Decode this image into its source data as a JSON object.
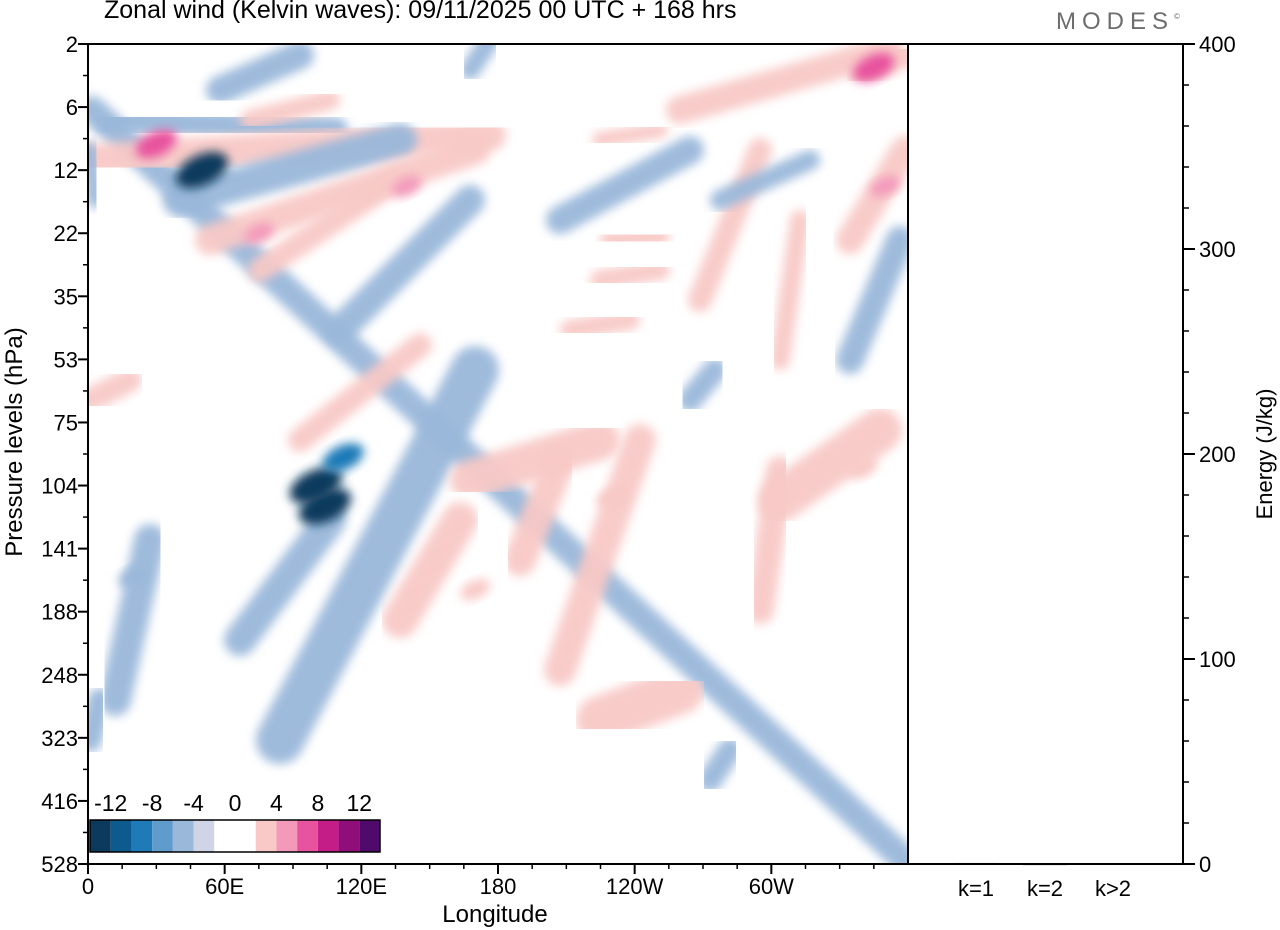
{
  "header": {
    "title": "Zonal wind (Kelvin waves):  09/11/2025  00 UTC  + 168 hrs",
    "logo_text": "MODES",
    "logo_mark": "©"
  },
  "chart_data": [
    {
      "type": "heatmap",
      "title": "Zonal wind (Kelvin waves):  09/11/2025  00 UTC  + 168 hrs",
      "xlabel": "Longitude",
      "ylabel": "Pressure levels (hPa)",
      "x_ticks": [
        {
          "lon": 0,
          "label": "0"
        },
        {
          "lon": 60,
          "label": "60E"
        },
        {
          "lon": 120,
          "label": "120E"
        },
        {
          "lon": 180,
          "label": "180"
        },
        {
          "lon": 240,
          "label": "120W"
        },
        {
          "lon": 300,
          "label": "60W"
        }
      ],
      "xlim": [
        0,
        360
      ],
      "y_levels": [
        "2",
        "6",
        "12",
        "22",
        "35",
        "53",
        "75",
        "104",
        "141",
        "188",
        "248",
        "323",
        "416",
        "528"
      ],
      "colorbar": {
        "labels": [
          "-12",
          "-8",
          "-4",
          "0",
          "4",
          "8",
          "12"
        ],
        "label_positions": [
          -12,
          -8,
          -4,
          0,
          4,
          8,
          12
        ],
        "bins": [
          {
            "value": -13,
            "color": "#0b3a5d"
          },
          {
            "value": -11,
            "color": "#0d5a8e"
          },
          {
            "value": -9,
            "color": "#1f7ab8"
          },
          {
            "value": -7,
            "color": "#5f9ccc"
          },
          {
            "value": -5,
            "color": "#9ab8da"
          },
          {
            "value": -3,
            "color": "#d0d4e7"
          },
          {
            "value": -1,
            "color": "#ffffff"
          },
          {
            "value": 1,
            "color": "#ffffff"
          },
          {
            "value": 3,
            "color": "#f8c9c6"
          },
          {
            "value": 5,
            "color": "#f39abb"
          },
          {
            "value": 7,
            "color": "#e8539f"
          },
          {
            "value": 9,
            "color": "#c41d87"
          },
          {
            "value": 11,
            "color": "#8f0e7a"
          },
          {
            "value": 13,
            "color": "#4f0a6b"
          }
        ]
      },
      "wind_features": [
        {
          "lon": 50,
          "p": 12,
          "value": -12
        },
        {
          "lon": 104,
          "p": 115,
          "value": -14
        },
        {
          "lon": 100,
          "p": 104,
          "value": -12
        },
        {
          "lon": 112,
          "p": 90,
          "value": -8
        },
        {
          "lon": 30,
          "p": 9,
          "value": 8
        },
        {
          "lon": 140,
          "p": 14,
          "value": 6
        },
        {
          "lon": 75,
          "p": 22,
          "value": 6
        },
        {
          "lon": 345,
          "p": 3,
          "value": 8
        },
        {
          "lon": 350,
          "p": 14,
          "value": 6
        },
        {
          "lon": 230,
          "p": 110,
          "value": 4
        },
        {
          "lon": 170,
          "p": 170,
          "value": 4
        },
        {
          "lon": 340,
          "p": 95,
          "value": 4
        },
        {
          "lon": 20,
          "p": 160,
          "value": -4
        }
      ]
    },
    {
      "type": "bar",
      "categories": [
        "k=1",
        "k=2",
        "k>2"
      ],
      "values": [
        0.5,
        0.2,
        0.4
      ],
      "ylabel": "Energy (J/kg)",
      "ylim": [
        0,
        400
      ],
      "y_ticks": [
        "0",
        "100",
        "200",
        "300",
        "400"
      ],
      "colors": {
        "bar": "#000000",
        "axis": "#000000"
      }
    }
  ]
}
